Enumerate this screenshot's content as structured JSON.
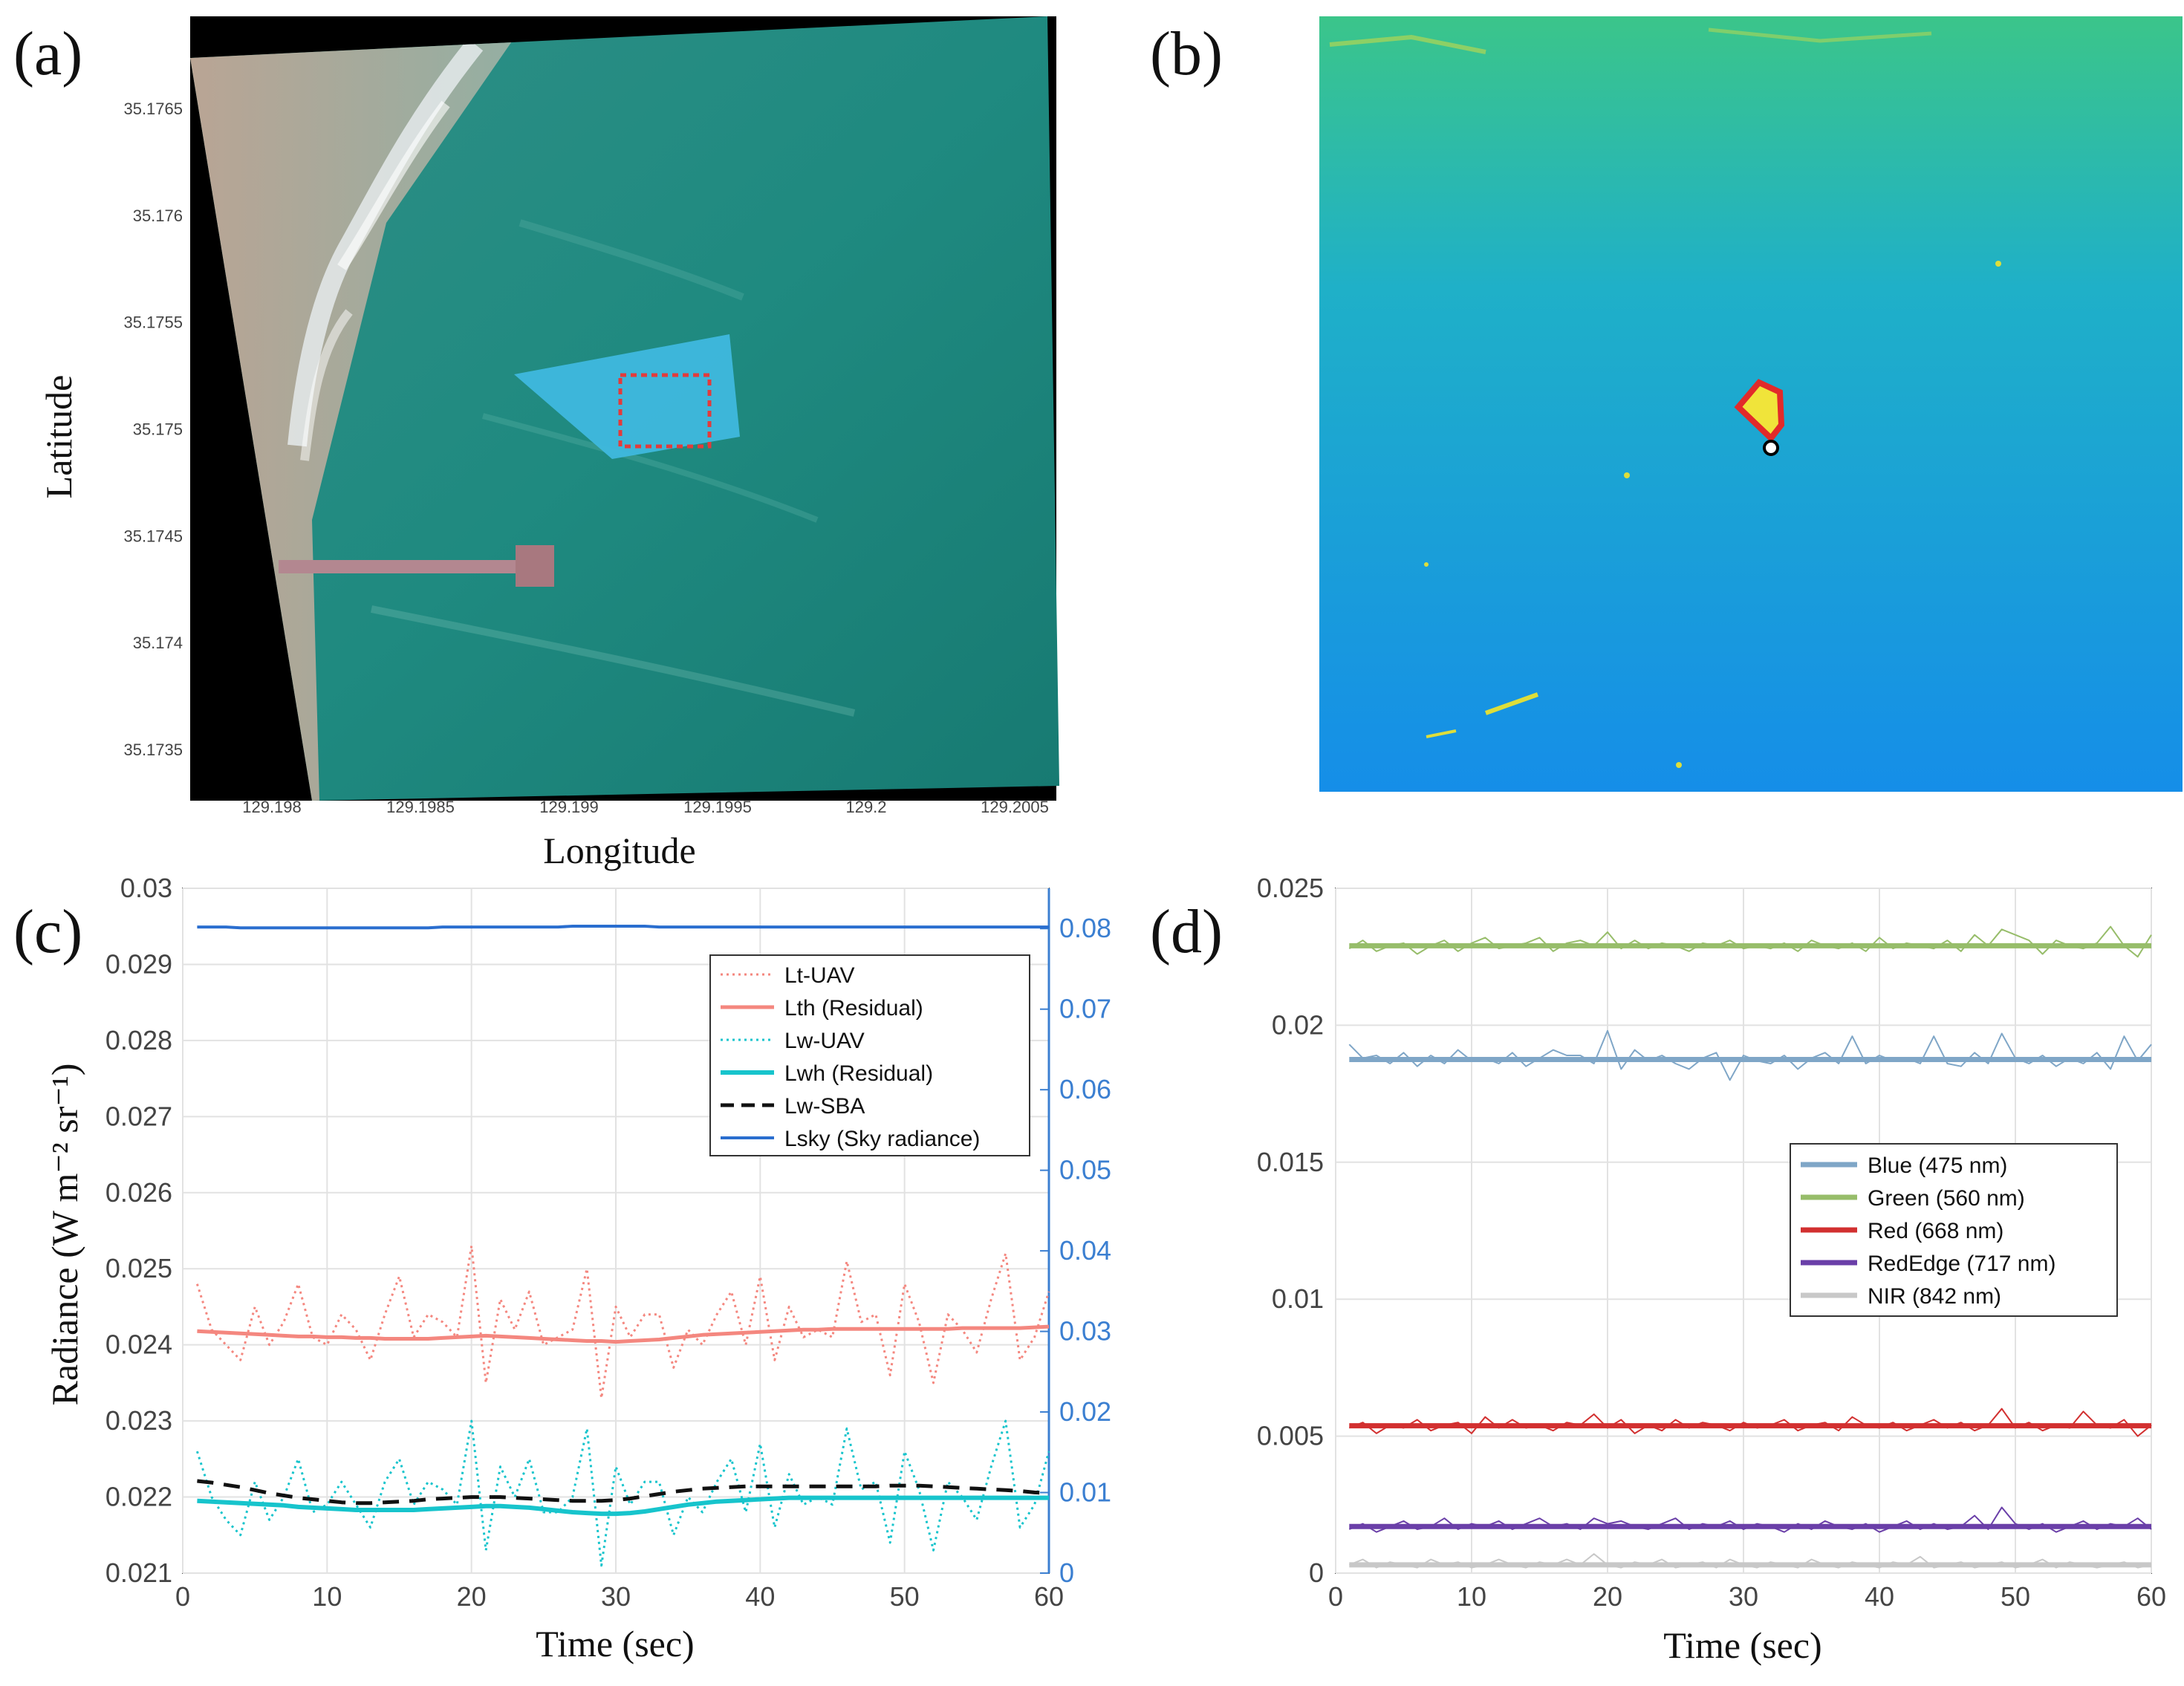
{
  "panels": {
    "a": {
      "label": "(a)",
      "xlabel": "Longitude",
      "ylabel": "Latitude",
      "xticks": [
        "129.198",
        "129.1985",
        "129.199",
        "129.1995",
        "129.2",
        "129.2005"
      ],
      "yticks": [
        "35.1765",
        "35.176",
        "35.1755",
        "35.175",
        "35.1745",
        "35.174",
        "35.1735"
      ]
    },
    "b": {
      "label": "(b)"
    },
    "c": {
      "label": "(c)"
    },
    "d": {
      "label": "(d)"
    }
  },
  "chart_data": [
    {
      "id": "c",
      "type": "line",
      "xlabel": "Time (sec)",
      "ylabel": "Radiance (W m⁻² sr⁻¹)",
      "xlim": [
        0,
        60
      ],
      "ylim": [
        0.021,
        0.03
      ],
      "y2lim": [
        0,
        0.085
      ],
      "xticks": [
        "0",
        "10",
        "20",
        "30",
        "40",
        "50",
        "60"
      ],
      "yticks": [
        "0.021",
        "0.022",
        "0.023",
        "0.024",
        "0.025",
        "0.026",
        "0.027",
        "0.028",
        "0.029",
        "0.03"
      ],
      "y2ticks": [
        "0",
        "0.01",
        "0.02",
        "0.03",
        "0.04",
        "0.05",
        "0.06",
        "0.07",
        "0.08"
      ],
      "series": [
        {
          "name": "Lt-UAV",
          "axis": "left",
          "color": "#f4877f",
          "dash": "dotted",
          "width": 3,
          "values": [
            0.0248,
            0.0242,
            0.024,
            0.0238,
            0.0245,
            0.024,
            0.0243,
            0.0248,
            0.0241,
            0.024,
            0.0244,
            0.0242,
            0.0238,
            0.0244,
            0.0249,
            0.0241,
            0.0244,
            0.0243,
            0.0241,
            0.0253,
            0.0235,
            0.0246,
            0.0242,
            0.0247,
            0.024,
            0.0241,
            0.0242,
            0.025,
            0.0233,
            0.0245,
            0.0241,
            0.0244,
            0.0244,
            0.0237,
            0.0242,
            0.024,
            0.0244,
            0.0247,
            0.024,
            0.0249,
            0.0238,
            0.0245,
            0.0241,
            0.0242,
            0.0241,
            0.0251,
            0.0243,
            0.0244,
            0.0236,
            0.0248,
            0.0243,
            0.0235,
            0.0244,
            0.0242,
            0.0239,
            0.0246,
            0.0252,
            0.0238,
            0.0241,
            0.0247
          ]
        },
        {
          "name": "Lth (Residual)",
          "axis": "left",
          "color": "#f4877f",
          "dash": "solid",
          "width": 5,
          "values": [
            0.02418,
            0.02417,
            0.02416,
            0.02415,
            0.02414,
            0.02413,
            0.02412,
            0.02411,
            0.02411,
            0.0241,
            0.0241,
            0.02409,
            0.02409,
            0.02408,
            0.02408,
            0.02408,
            0.02408,
            0.02409,
            0.0241,
            0.02411,
            0.02412,
            0.02411,
            0.0241,
            0.02409,
            0.02408,
            0.02407,
            0.02406,
            0.02405,
            0.02405,
            0.02404,
            0.02405,
            0.02406,
            0.02407,
            0.02409,
            0.02411,
            0.02413,
            0.02414,
            0.02415,
            0.02416,
            0.02417,
            0.02418,
            0.02419,
            0.0242,
            0.0242,
            0.02421,
            0.02421,
            0.02421,
            0.02421,
            0.02421,
            0.02421,
            0.02421,
            0.02421,
            0.02421,
            0.02422,
            0.02422,
            0.02422,
            0.02422,
            0.02422,
            0.02423,
            0.02424
          ]
        },
        {
          "name": "Lw-UAV",
          "axis": "left",
          "color": "#17c4cc",
          "dash": "dotted",
          "width": 3,
          "values": [
            0.0226,
            0.022,
            0.0217,
            0.0215,
            0.0222,
            0.0217,
            0.022,
            0.0225,
            0.0218,
            0.0219,
            0.0222,
            0.0219,
            0.0216,
            0.0222,
            0.0225,
            0.0219,
            0.0222,
            0.0221,
            0.0219,
            0.023,
            0.0213,
            0.0224,
            0.022,
            0.0225,
            0.0218,
            0.0218,
            0.022,
            0.0229,
            0.0211,
            0.0224,
            0.0219,
            0.0222,
            0.0222,
            0.0215,
            0.022,
            0.0218,
            0.0222,
            0.0225,
            0.0218,
            0.0227,
            0.0216,
            0.0223,
            0.0219,
            0.022,
            0.0219,
            0.0229,
            0.0221,
            0.0222,
            0.0214,
            0.0226,
            0.0221,
            0.0213,
            0.0222,
            0.022,
            0.0217,
            0.0224,
            0.023,
            0.0216,
            0.0219,
            0.0226
          ]
        },
        {
          "name": "Lwh (Residual)",
          "axis": "left",
          "color": "#17c4cc",
          "dash": "solid",
          "width": 6,
          "values": [
            0.02195,
            0.02194,
            0.02193,
            0.02192,
            0.02191,
            0.0219,
            0.02189,
            0.02187,
            0.02186,
            0.02185,
            0.02184,
            0.02183,
            0.02183,
            0.02183,
            0.02183,
            0.02183,
            0.02184,
            0.02185,
            0.02186,
            0.02187,
            0.02188,
            0.02188,
            0.02187,
            0.02186,
            0.02184,
            0.02182,
            0.0218,
            0.02179,
            0.02178,
            0.02178,
            0.02179,
            0.02181,
            0.02184,
            0.02187,
            0.0219,
            0.02192,
            0.02194,
            0.02195,
            0.02196,
            0.02197,
            0.02198,
            0.02199,
            0.02199,
            0.02199,
            0.02199,
            0.02199,
            0.02199,
            0.02199,
            0.02199,
            0.02199,
            0.02199,
            0.02199,
            0.02199,
            0.02199,
            0.02199,
            0.02199,
            0.02199,
            0.02199,
            0.02199,
            0.02199
          ]
        },
        {
          "name": "Lw-SBA",
          "axis": "left",
          "color": "#111111",
          "dash": "dashed",
          "width": 5,
          "values": [
            0.02221,
            0.02219,
            0.02216,
            0.02213,
            0.02209,
            0.02205,
            0.02202,
            0.02199,
            0.02197,
            0.02195,
            0.02193,
            0.02192,
            0.02192,
            0.02193,
            0.02194,
            0.02195,
            0.02197,
            0.02198,
            0.02199,
            0.022,
            0.022,
            0.022,
            0.02199,
            0.02198,
            0.02197,
            0.02196,
            0.02195,
            0.02195,
            0.02195,
            0.02196,
            0.02198,
            0.02201,
            0.02204,
            0.02207,
            0.02209,
            0.02211,
            0.02212,
            0.02213,
            0.02214,
            0.02214,
            0.02214,
            0.02214,
            0.02214,
            0.02214,
            0.02214,
            0.02214,
            0.02214,
            0.02214,
            0.02215,
            0.02215,
            0.02215,
            0.02214,
            0.02213,
            0.02212,
            0.02211,
            0.0221,
            0.02209,
            0.02208,
            0.02206,
            0.02205
          ]
        },
        {
          "name": "Lsky (Sky radiance)",
          "axis": "right",
          "color": "#2a6ecf",
          "dash": "solid",
          "width": 4,
          "values": [
            0.0802,
            0.0802,
            0.0802,
            0.0801,
            0.0801,
            0.0801,
            0.0801,
            0.0801,
            0.0801,
            0.0801,
            0.0801,
            0.0801,
            0.0801,
            0.0801,
            0.0801,
            0.0801,
            0.0801,
            0.0802,
            0.0802,
            0.0802,
            0.0802,
            0.0802,
            0.0802,
            0.0802,
            0.0802,
            0.0802,
            0.0803,
            0.0803,
            0.0803,
            0.0803,
            0.0803,
            0.0803,
            0.0802,
            0.0802,
            0.0802,
            0.0802,
            0.0802,
            0.0802,
            0.0802,
            0.0802,
            0.0802,
            0.0802,
            0.0802,
            0.0802,
            0.0802,
            0.0802,
            0.0802,
            0.0802,
            0.0802,
            0.0802,
            0.0802,
            0.0802,
            0.0802,
            0.0802,
            0.0802,
            0.0802,
            0.0802,
            0.0802,
            0.0802,
            0.0802
          ]
        }
      ]
    },
    {
      "id": "d",
      "type": "line",
      "xlabel": "Time (sec)",
      "ylabel": "",
      "xlim": [
        0,
        60
      ],
      "ylim": [
        0,
        0.025
      ],
      "xticks": [
        "0",
        "10",
        "20",
        "30",
        "40",
        "50",
        "60"
      ],
      "yticks": [
        "0",
        "0.005",
        "0.01",
        "0.015",
        "0.02",
        "0.025"
      ],
      "series": [
        {
          "name": "Blue (475 nm)",
          "color": "#7fa6c7",
          "raw": [
            0.0193,
            0.0188,
            0.0189,
            0.0186,
            0.019,
            0.0185,
            0.0189,
            0.0186,
            0.0191,
            0.0187,
            0.0188,
            0.0186,
            0.019,
            0.0185,
            0.0188,
            0.0191,
            0.0189,
            0.0189,
            0.0186,
            0.0198,
            0.0184,
            0.0191,
            0.0187,
            0.0189,
            0.0186,
            0.0184,
            0.0188,
            0.019,
            0.018,
            0.0189,
            0.0187,
            0.0186,
            0.0189,
            0.0184,
            0.0188,
            0.019,
            0.0186,
            0.0196,
            0.0186,
            0.0189,
            0.0187,
            0.0188,
            0.0186,
            0.0196,
            0.0186,
            0.0185,
            0.019,
            0.0186,
            0.0197,
            0.0188,
            0.0186,
            0.0189,
            0.0185,
            0.0188,
            0.0186,
            0.019,
            0.0184,
            0.0196,
            0.0187,
            0.0193
          ],
          "smooth": 0.01875
        },
        {
          "name": "Green (560 nm)",
          "color": "#97bd6a",
          "raw": [
            0.0228,
            0.0231,
            0.0227,
            0.0229,
            0.023,
            0.0226,
            0.0229,
            0.0231,
            0.0227,
            0.023,
            0.0232,
            0.0228,
            0.0229,
            0.023,
            0.0232,
            0.0227,
            0.023,
            0.0231,
            0.0229,
            0.0234,
            0.0228,
            0.0231,
            0.0228,
            0.023,
            0.0229,
            0.0227,
            0.023,
            0.0229,
            0.0231,
            0.0228,
            0.0229,
            0.0228,
            0.023,
            0.0227,
            0.0231,
            0.0229,
            0.0228,
            0.023,
            0.0227,
            0.0232,
            0.0228,
            0.023,
            0.0229,
            0.0228,
            0.0231,
            0.0227,
            0.0233,
            0.0229,
            0.0235,
            0.0233,
            0.0231,
            0.0226,
            0.0231,
            0.0229,
            0.0228,
            0.023,
            0.0236,
            0.0229,
            0.0225,
            0.0233
          ],
          "smooth": 0.0229
        },
        {
          "name": "Red (668 nm)",
          "color": "#d23030",
          "raw": [
            0.0053,
            0.0055,
            0.0051,
            0.0054,
            0.0053,
            0.0056,
            0.0052,
            0.0054,
            0.0055,
            0.0051,
            0.0057,
            0.0053,
            0.0056,
            0.0053,
            0.0054,
            0.0052,
            0.0055,
            0.0054,
            0.0058,
            0.0053,
            0.0056,
            0.0051,
            0.0054,
            0.0052,
            0.0056,
            0.0053,
            0.0055,
            0.0054,
            0.0052,
            0.0055,
            0.0053,
            0.0054,
            0.0056,
            0.0052,
            0.0054,
            0.0055,
            0.0052,
            0.0057,
            0.0054,
            0.0053,
            0.0055,
            0.0052,
            0.0054,
            0.0056,
            0.0053,
            0.0055,
            0.0052,
            0.0054,
            0.006,
            0.0053,
            0.0055,
            0.0052,
            0.0054,
            0.0053,
            0.0059,
            0.0054,
            0.0053,
            0.0056,
            0.005,
            0.0054
          ],
          "smooth": 0.00538
        },
        {
          "name": "RedEdge (717 nm)",
          "color": "#6a3fa8",
          "raw": [
            0.0016,
            0.0018,
            0.0015,
            0.0017,
            0.0019,
            0.0016,
            0.0017,
            0.002,
            0.0016,
            0.0018,
            0.0017,
            0.0019,
            0.0016,
            0.0018,
            0.002,
            0.0017,
            0.0018,
            0.0016,
            0.002,
            0.0018,
            0.0019,
            0.0017,
            0.0016,
            0.0018,
            0.002,
            0.0016,
            0.0018,
            0.0017,
            0.0019,
            0.0016,
            0.0018,
            0.0017,
            0.0015,
            0.0018,
            0.0016,
            0.0019,
            0.0017,
            0.0016,
            0.0018,
            0.0015,
            0.0017,
            0.0019,
            0.0016,
            0.0018,
            0.0016,
            0.0017,
            0.0021,
            0.0016,
            0.0024,
            0.0018,
            0.0016,
            0.0018,
            0.0015,
            0.0017,
            0.0019,
            0.0016,
            0.0018,
            0.0017,
            0.002,
            0.0016
          ],
          "smooth": 0.0017
        },
        {
          "name": "NIR (842 nm)",
          "color": "#c8c8c8",
          "raw": [
            0.0003,
            0.0005,
            0.0002,
            0.0004,
            0.0003,
            0.0002,
            0.0005,
            0.0003,
            0.0004,
            0.0002,
            0.0003,
            0.0005,
            0.0003,
            0.0002,
            0.0004,
            0.0003,
            0.0005,
            0.0003,
            0.0007,
            0.0003,
            0.0002,
            0.0004,
            0.0003,
            0.0005,
            0.0002,
            0.0003,
            0.0004,
            0.0002,
            0.0005,
            0.0003,
            0.0002,
            0.0004,
            0.0003,
            0.0002,
            0.0005,
            0.0003,
            0.0002,
            0.0004,
            0.0003,
            0.0002,
            0.0004,
            0.0003,
            0.0006,
            0.0002,
            0.0003,
            0.0004,
            0.0002,
            0.0003,
            0.0004,
            0.0002,
            0.0003,
            0.0005,
            0.0002,
            0.0004,
            0.0003,
            0.0002,
            0.0003,
            0.0004,
            0.0002,
            0.0003
          ],
          "smooth": 0.0003
        }
      ]
    }
  ]
}
